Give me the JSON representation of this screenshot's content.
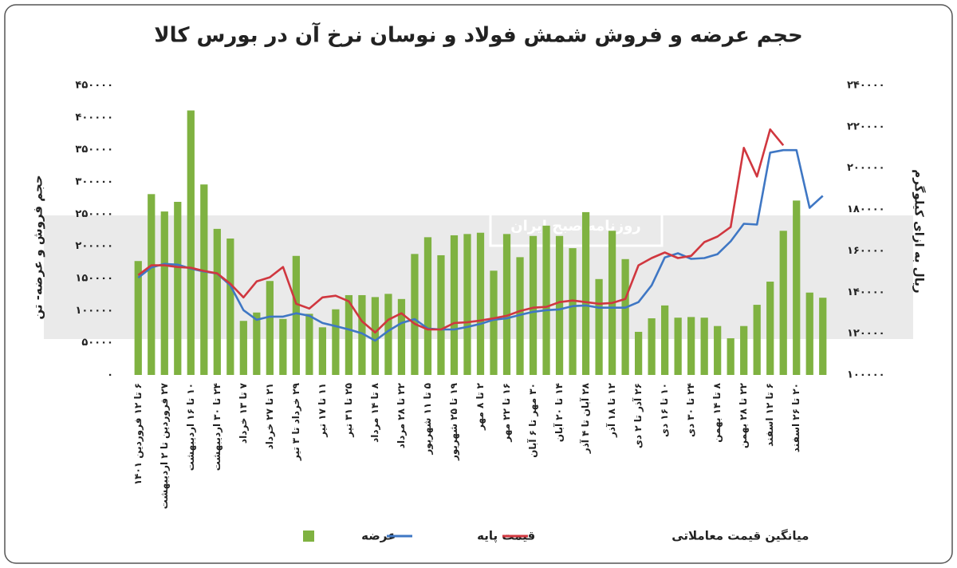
{
  "chart_data": {
    "type": "bar",
    "title": "حجم عرضه و فروش شمش فولاد و نوسان نرخ آن در بورس کالا",
    "ylabel": "حجم فروش و عرضه- تن",
    "y2label": "ریال به ازای کیلوگرم",
    "watermark": "روزنامه صبح ایران",
    "categories": [
      "۶ تا ۱۲ فروردین ۱۴۰۱",
      null,
      "۲۷ فروردین تا ۲ اردیبهشت",
      null,
      "۱۰ تا ۱۶ اردیبهشت",
      null,
      "۲۴ تا ۳۰ اردیبهشت",
      null,
      "۷ تا ۱۳ خرداد",
      null,
      "۲۱ تا ۲۷ خرداد",
      null,
      "۲۹ خرداد تا ۳ تیر",
      null,
      "۱۱ تا ۱۷ تیر",
      null,
      "۲۵ تا ۳۱ تیر",
      null,
      "۸ تا ۱۴ مرداد",
      null,
      "۲۲ تا ۲۸ مرداد",
      null,
      "۵ تا ۱۱ شهریور",
      null,
      "۱۹ تا ۲۵ شهریور",
      null,
      "۲ تا ۸ مهر",
      null,
      "۱۶ تا ۲۲ مهر",
      null,
      "۳۰ مهر تا ۶ آبان",
      null,
      "۱۴ تا ۲۰ آبان",
      null,
      "۲۸ آبان تا ۴ آذر",
      null,
      "۱۲ تا ۱۸ آذر",
      null,
      "۲۶ آذر تا ۲ دی",
      null,
      "۱۰ تا ۱۶ دی",
      null,
      "۲۴ تا ۳۰ دی",
      null,
      "۸ تا ۱۴ بهمن",
      null,
      "۲۲ تا ۲۸ بهمن",
      null,
      "۶ تا ۱۲ اسفند",
      null,
      "۲۰ تا ۲۶ اسفند",
      null,
      null
    ],
    "series": [
      {
        "name": "عرضه",
        "type": "bar",
        "color": "#7fb241",
        "values": [
          177000,
          281000,
          254000,
          269000,
          411000,
          296000,
          227000,
          212000,
          84000,
          97000,
          146000,
          87000,
          185000,
          95000,
          74000,
          102000,
          124000,
          124000,
          121000,
          126000,
          118000,
          188000,
          214000,
          186000,
          217000,
          219000,
          221000,
          162000,
          219000,
          183000,
          216000,
          232000,
          216000,
          197000,
          253000,
          149000,
          224000,
          180000,
          67000,
          88000,
          108000,
          89000,
          90000,
          89000,
          76000,
          57000,
          76000,
          109000,
          145000,
          224000,
          271000,
          128000,
          120000
        ]
      },
      {
        "name": "قیمت پایه",
        "type": "line",
        "axis": "y2",
        "color": "#3f77c4",
        "values": [
          147000,
          152000,
          153700,
          153300,
          151400,
          150000,
          149000,
          143300,
          131300,
          126700,
          128200,
          128200,
          129800,
          128600,
          125100,
          123600,
          122000,
          120100,
          116600,
          121300,
          125100,
          127000,
          122400,
          122000,
          122000,
          123200,
          124700,
          126700,
          127400,
          129000,
          130500,
          131300,
          131700,
          133300,
          133600,
          132500,
          132500,
          132500,
          135200,
          143300,
          156800,
          158800,
          156100,
          156500,
          158400,
          164600,
          173100,
          172700,
          207500,
          208700,
          208700,
          180800,
          186600
        ]
      },
      {
        "name": "میانگین قیمت معاملاتی",
        "type": "line",
        "axis": "y2",
        "color": "#d0373f",
        "values": [
          148300,
          153000,
          153000,
          152200,
          151800,
          150300,
          149100,
          144100,
          137500,
          145200,
          147200,
          152200,
          134400,
          132100,
          137500,
          138300,
          135600,
          125900,
          120500,
          126700,
          129800,
          124700,
          122000,
          122000,
          125100,
          125500,
          126300,
          127400,
          128600,
          130900,
          132500,
          132900,
          135200,
          136000,
          135200,
          134400,
          134800,
          136700,
          153000,
          156500,
          159200,
          156500,
          157600,
          164200,
          166900,
          171500,
          209800,
          195900,
          218700,
          211000,
          null,
          null,
          null
        ]
      }
    ],
    "ylim": [
      0,
      450000
    ],
    "yticks": [
      {
        "value": 0,
        "label": "۰"
      },
      {
        "value": 50000,
        "label": "۵۰۰۰۰"
      },
      {
        "value": 100000,
        "label": "۱۰۰۰۰۰"
      },
      {
        "value": 150000,
        "label": "۱۵۰۰۰۰"
      },
      {
        "value": 200000,
        "label": "۲۰۰۰۰۰"
      },
      {
        "value": 250000,
        "label": "۲۵۰۰۰۰"
      },
      {
        "value": 300000,
        "label": "۳۰۰۰۰۰"
      },
      {
        "value": 350000,
        "label": "۳۵۰۰۰۰"
      },
      {
        "value": 400000,
        "label": "۴۰۰۰۰۰"
      },
      {
        "value": 450000,
        "label": "۴۵۰۰۰۰"
      }
    ],
    "y2lim": [
      100000,
      240000
    ],
    "y2ticks": [
      {
        "value": 100000,
        "label": "۱۰۰۰۰۰"
      },
      {
        "value": 120000,
        "label": "۱۲۰۰۰۰"
      },
      {
        "value": 140000,
        "label": "۱۴۰۰۰۰"
      },
      {
        "value": 160000,
        "label": "۱۶۰۰۰۰"
      },
      {
        "value": 180000,
        "label": "۱۸۰۰۰۰"
      },
      {
        "value": 200000,
        "label": "۲۰۰۰۰۰"
      },
      {
        "value": 220000,
        "label": "۲۲۰۰۰۰"
      },
      {
        "value": 240000,
        "label": "۲۴۰۰۰۰"
      }
    ],
    "grid": false,
    "legend": "bottom"
  }
}
